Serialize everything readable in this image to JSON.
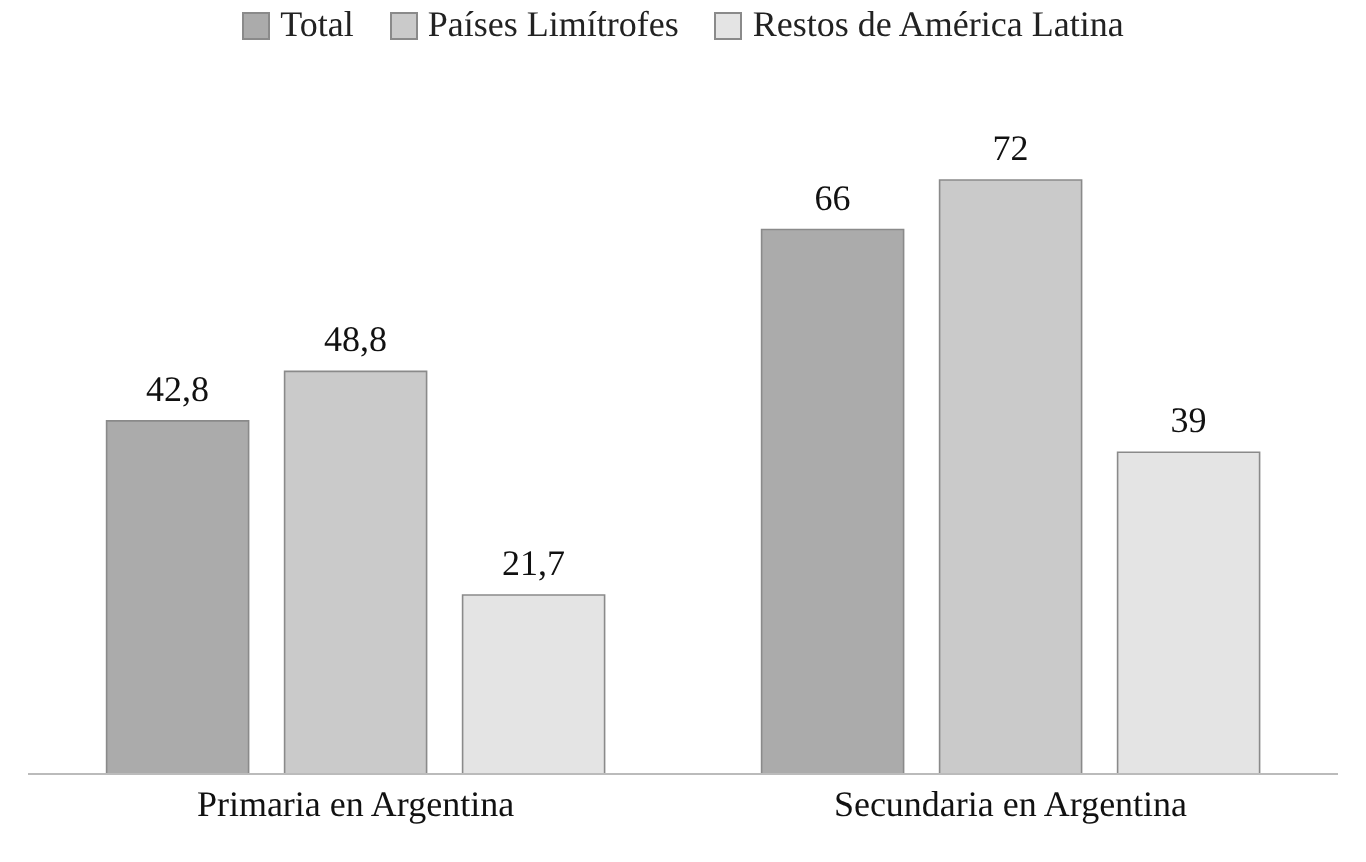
{
  "chart_data": {
    "type": "bar",
    "categories": [
      "Primaria en Argentina",
      "Secundaria en Argentina"
    ],
    "series": [
      {
        "name": "Total",
        "color": "#ababab",
        "values": [
          42.8,
          66
        ],
        "value_labels": [
          "42,8",
          "66"
        ]
      },
      {
        "name": "Países Limítrofes",
        "color": "#cacaca",
        "values": [
          48.8,
          72
        ],
        "value_labels": [
          "48,8",
          "72"
        ]
      },
      {
        "name": "Restos de América Latina",
        "color": "#e4e4e4",
        "values": [
          21.7,
          39
        ],
        "value_labels": [
          "21,7",
          "39"
        ]
      }
    ],
    "legend": "top"
  }
}
